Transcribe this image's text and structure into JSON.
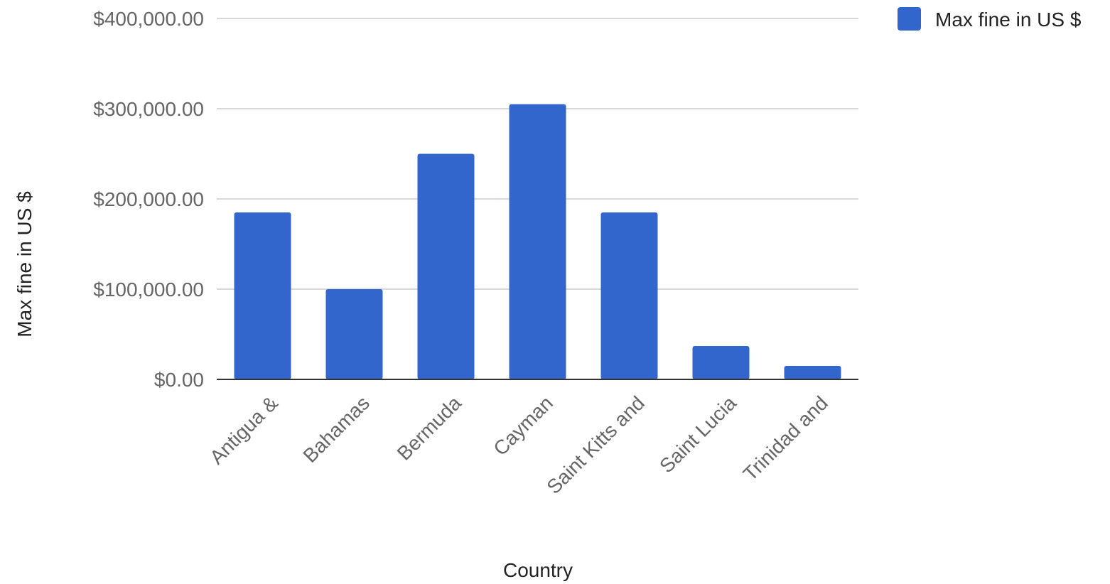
{
  "chart_data": {
    "type": "bar",
    "categories": [
      "Antigua &",
      "Bahamas",
      "Bermuda",
      "Cayman",
      "Saint Kitts and",
      "Saint Lucia",
      "Trinidad and"
    ],
    "series": [
      {
        "name": "Max fine in US $",
        "values": [
          185000,
          100000,
          250000,
          305000,
          185000,
          37000,
          15000
        ],
        "color": "#3366cc"
      }
    ],
    "xlabel": "Country",
    "ylabel": "Max fine in US $",
    "ylim": [
      0,
      400000
    ],
    "yticks": [
      0,
      100000,
      200000,
      300000,
      400000
    ],
    "ytick_labels": [
      "$0.00",
      "$100,000.00",
      "$200,000.00",
      "$300,000.00",
      "$400,000.00"
    ],
    "grid": true,
    "legend_position": "top-right"
  }
}
